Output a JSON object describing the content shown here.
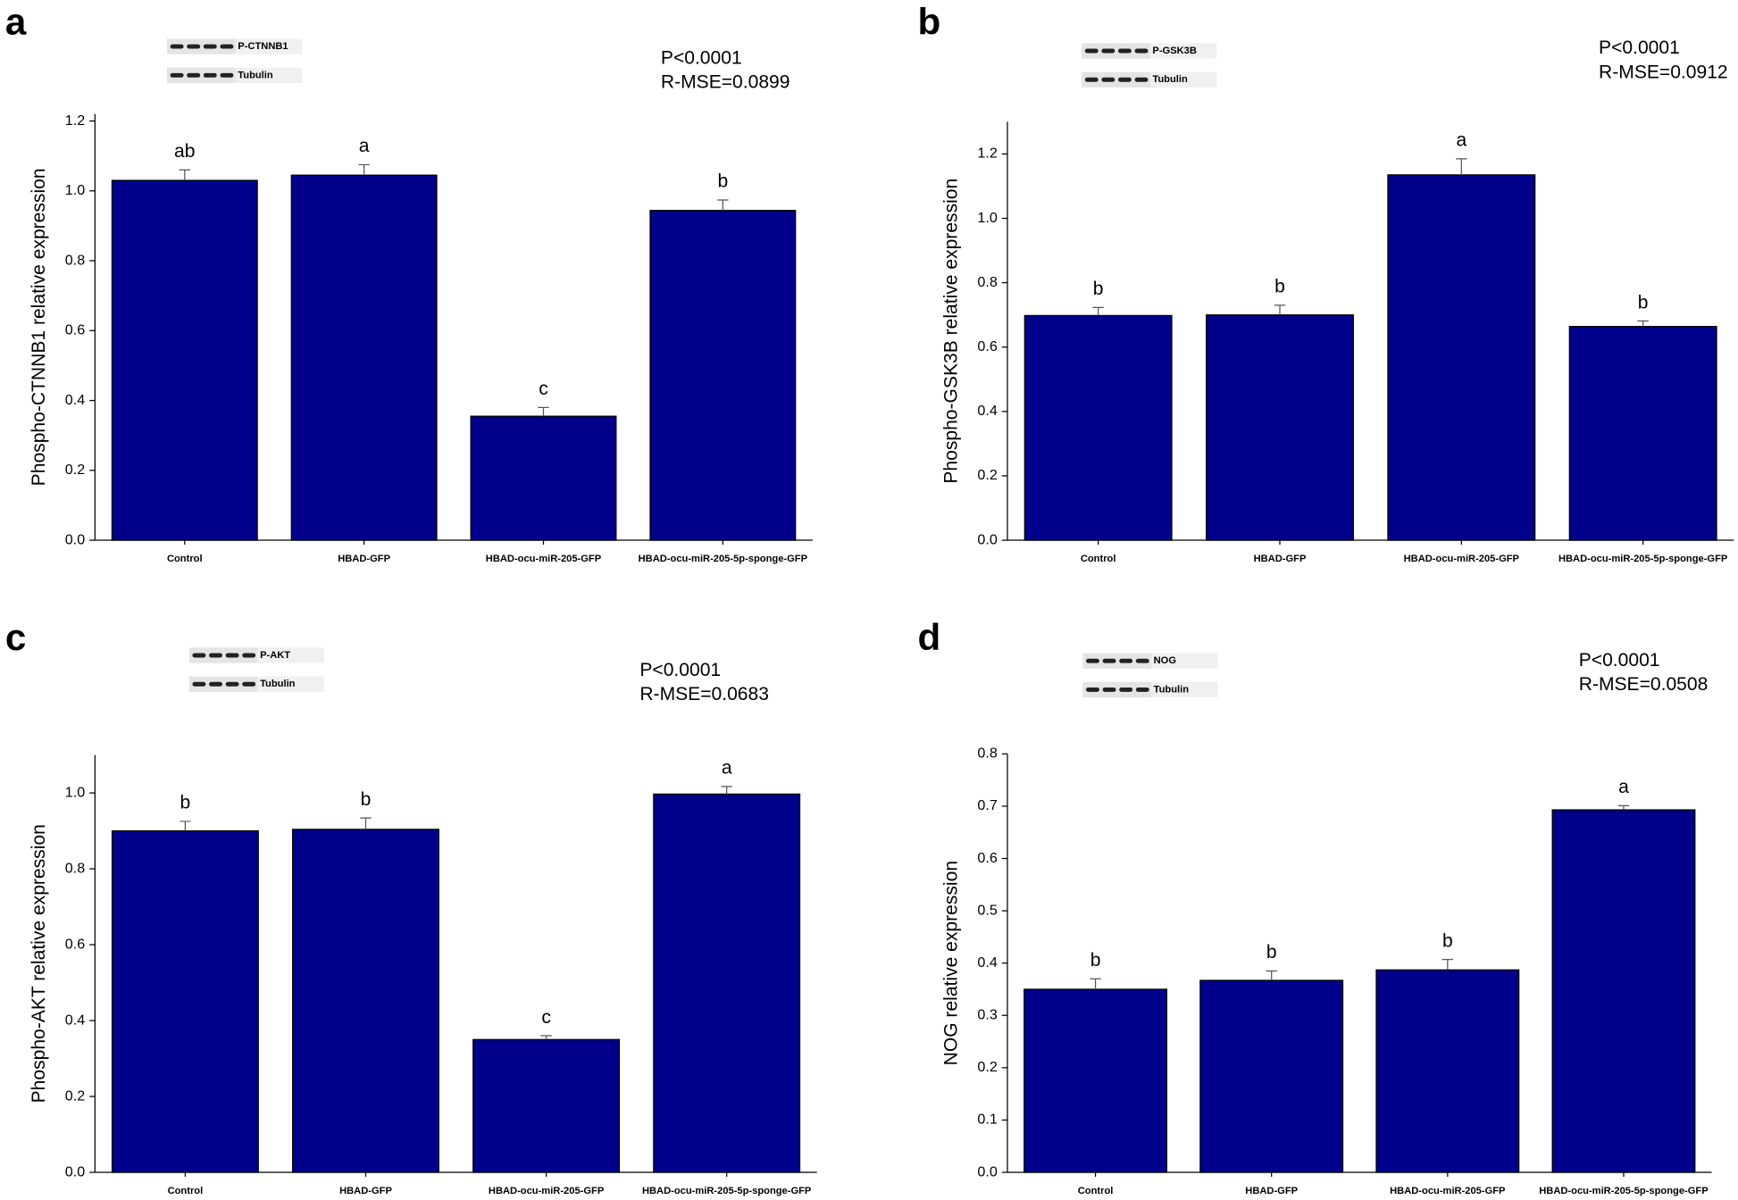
{
  "chart_data": [
    {
      "type": "bar",
      "panel": "a",
      "ylabel": "Phospho-CTNNB1 relative expression",
      "categories": [
        "Control",
        "HBAD-GFP",
        "HBAD-ocu-miR-205-GFP",
        "HBAD-ocu-miR-205-5p-sponge-GFP"
      ],
      "values": [
        1.03,
        1.045,
        0.355,
        0.944
      ],
      "errors": [
        0.03,
        0.03,
        0.025,
        0.03
      ],
      "significance_letters": [
        "ab",
        "a",
        "c",
        "b"
      ],
      "color": "#00008b",
      "stats": [
        "P<0.0001",
        "R-MSE=0.0899"
      ],
      "blot_labels": [
        "P-CTNNB1",
        "Tubulin"
      ],
      "ylim": [
        0,
        1.22
      ],
      "yticks": [
        {
          "value": 0,
          "label": "0.0"
        },
        0.2,
        0.4,
        0.6,
        0.8,
        {
          "value": 1,
          "label": "1.0"
        },
        1.2
      ]
    },
    {
      "type": "bar",
      "panel": "b",
      "ylabel": "Phospho-GSK3B relative expression",
      "categories": [
        "Control",
        "HBAD-GFP",
        "HBAD-ocu-miR-205-GFP",
        "HBAD-ocu-miR-205-5p-sponge-GFP"
      ],
      "values": [
        0.698,
        0.7,
        1.135,
        0.664
      ],
      "errors": [
        0.025,
        0.03,
        0.05,
        0.017
      ],
      "significance_letters": [
        "b",
        "b",
        "a",
        "b"
      ],
      "color": "#00008b",
      "stats": [
        "P<0.0001",
        "R-MSE=0.0912"
      ],
      "blot_labels": [
        "P-GSK3B",
        "Tubulin"
      ],
      "ylim": [
        0,
        1.3
      ],
      "yticks": [
        {
          "value": 0,
          "label": "0.0"
        },
        0.2,
        0.4,
        0.6,
        0.8,
        {
          "value": 1,
          "label": "1.0"
        },
        1.2
      ]
    },
    {
      "type": "bar",
      "panel": "c",
      "ylabel": "Phospho-AKT relative expression",
      "categories": [
        "Control",
        "HBAD-GFP",
        "HBAD-ocu-miR-205-GFP",
        "HBAD-ocu-miR-205-5p-sponge-GFP"
      ],
      "values": [
        0.9,
        0.904,
        0.35,
        0.997
      ],
      "errors": [
        0.025,
        0.03,
        0.01,
        0.02
      ],
      "significance_letters": [
        "b",
        "b",
        "c",
        "a"
      ],
      "color": "#00008b",
      "stats": [
        "P<0.0001",
        "R-MSE=0.0683"
      ],
      "blot_labels": [
        "P-AKT",
        "Tubulin"
      ],
      "ylim": [
        0,
        1.1
      ],
      "yticks": [
        {
          "value": 0,
          "label": "0.0"
        },
        0.2,
        0.4,
        0.6,
        0.8,
        {
          "value": 1,
          "label": "1.0"
        }
      ]
    },
    {
      "type": "bar",
      "panel": "d",
      "ylabel": "NOG relative expression",
      "categories": [
        "Control",
        "HBAD-GFP",
        "HBAD-ocu-miR-205-GFP",
        "HBAD-ocu-miR-205-5p-sponge-GFP"
      ],
      "values": [
        0.35,
        0.367,
        0.387,
        0.693
      ],
      "errors": [
        0.02,
        0.018,
        0.02,
        0.008
      ],
      "significance_letters": [
        "b",
        "b",
        "b",
        "a"
      ],
      "color": "#00008b",
      "stats": [
        "P<0.0001",
        "R-MSE=0.0508"
      ],
      "blot_labels": [
        "NOG",
        "Tubulin"
      ],
      "ylim": [
        0,
        0.8
      ],
      "yticks": [
        {
          "value": 0,
          "label": "0.0"
        },
        0.1,
        0.2,
        0.3,
        0.4,
        0.5,
        0.6,
        0.7,
        0.8
      ]
    }
  ]
}
